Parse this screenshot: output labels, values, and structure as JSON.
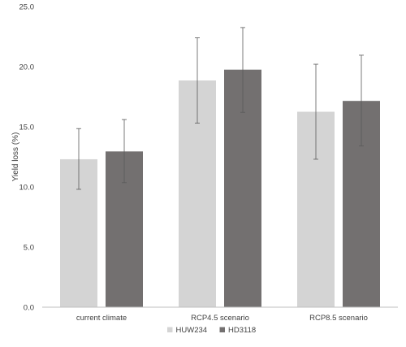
{
  "chart_data": {
    "type": "bar",
    "title": "",
    "xlabel": "",
    "ylabel": "Yield loss (%)",
    "ylim": [
      0,
      25
    ],
    "yticks": [
      0,
      5,
      10,
      15,
      20,
      25
    ],
    "ytick_labels": [
      "0.0",
      "5.0",
      "10.0",
      "15.0",
      "20.0",
      "25.0"
    ],
    "grid": false,
    "legend_position": "bottom",
    "categories": [
      "current climate",
      "RCP4.5 scenario",
      "RCP8.5 scenario"
    ],
    "series": [
      {
        "name": "HUW234",
        "color": "#d4d4d4",
        "values": [
          12.3,
          18.85,
          16.25
        ],
        "error_low": [
          9.8,
          15.3,
          12.3
        ],
        "error_high": [
          14.85,
          22.4,
          20.2
        ]
      },
      {
        "name": "HD3118",
        "color": "#737070",
        "values": [
          12.95,
          19.75,
          17.15
        ],
        "error_low": [
          10.35,
          16.2,
          13.4
        ],
        "error_high": [
          15.6,
          23.25,
          20.95
        ]
      }
    ]
  }
}
